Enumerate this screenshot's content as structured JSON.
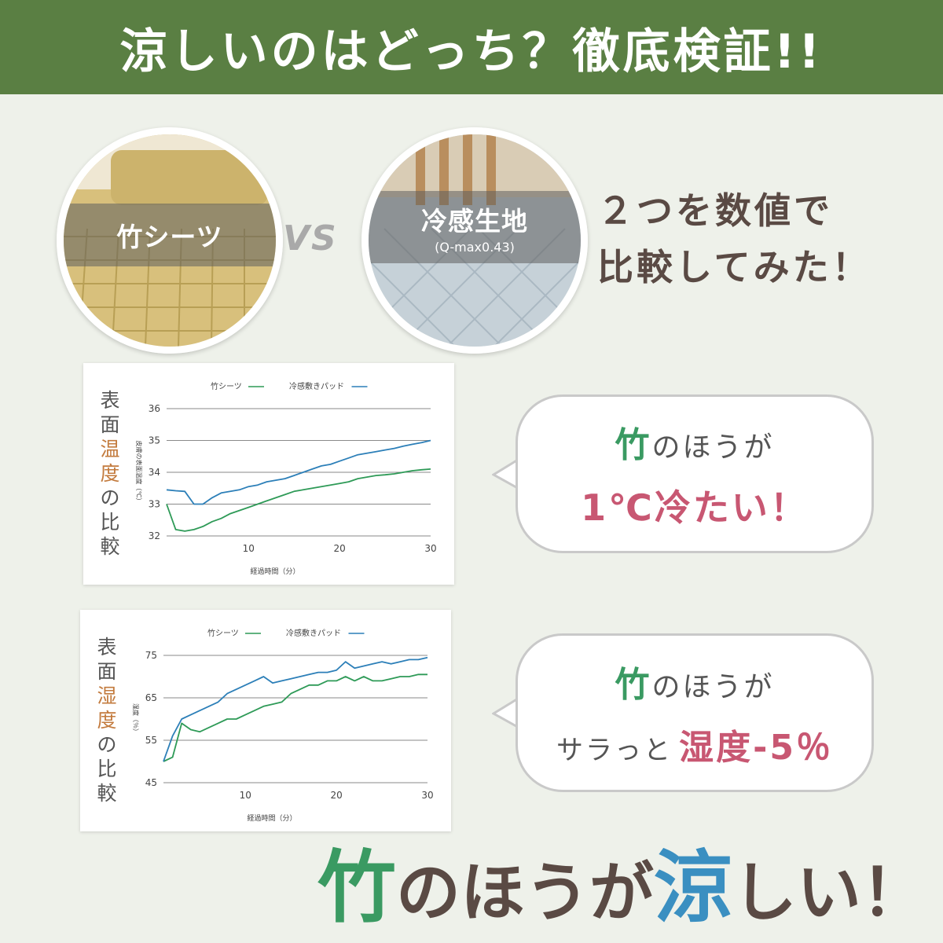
{
  "banner": {
    "title": "涼しいのはどっち？徹底検証!!"
  },
  "comparison": {
    "left": {
      "label": "竹シーツ"
    },
    "vs": "VS",
    "right": {
      "label": "冷感生地",
      "sublabel": "(Q-max0.43)"
    },
    "intro_lines": [
      "２つを数値で",
      "比較してみた！"
    ]
  },
  "colors": {
    "banner": "#5a7f43",
    "background": "#eef1ea",
    "bamboo_line": "#2e9a57",
    "cool_line": "#2c7fb8",
    "accent_green": "#3a9a62",
    "accent_pink": "#c85772",
    "accent_blue": "#3a8fc1"
  },
  "chart_data": [
    {
      "type": "line",
      "title_chars": [
        "表",
        "面",
        "温",
        "度",
        "の",
        "比",
        "較"
      ],
      "highlight_chars": [
        "温",
        "度"
      ],
      "xlabel": "経過時間（分）",
      "ylabel": "皮膚の表面温度（℃）",
      "ylim": [
        32,
        36
      ],
      "xlim": [
        1,
        30
      ],
      "yticks": [
        32,
        33,
        34,
        35,
        36
      ],
      "xticks": [
        10,
        20,
        30
      ],
      "grid": true,
      "legend_position": "top",
      "x": [
        1,
        2,
        3,
        4,
        5,
        6,
        7,
        8,
        9,
        10,
        11,
        12,
        13,
        14,
        15,
        16,
        17,
        18,
        19,
        20,
        21,
        22,
        23,
        24,
        25,
        26,
        27,
        28,
        29,
        30
      ],
      "series": [
        {
          "name": "竹シーツ",
          "color": "#2e9a57",
          "values": [
            33.0,
            32.2,
            32.15,
            32.2,
            32.3,
            32.45,
            32.55,
            32.7,
            32.8,
            32.9,
            33.0,
            33.1,
            33.2,
            33.3,
            33.4,
            33.45,
            33.5,
            33.55,
            33.6,
            33.65,
            33.7,
            33.8,
            33.85,
            33.9,
            33.92,
            33.95,
            34.0,
            34.05,
            34.08,
            34.1
          ]
        },
        {
          "name": "冷感敷きパッド",
          "color": "#2c7fb8",
          "values": [
            33.45,
            33.42,
            33.4,
            33.0,
            33.0,
            33.2,
            33.35,
            33.4,
            33.45,
            33.55,
            33.6,
            33.7,
            33.75,
            33.8,
            33.9,
            34.0,
            34.1,
            34.2,
            34.25,
            34.35,
            34.45,
            34.55,
            34.6,
            34.65,
            34.7,
            34.75,
            34.82,
            34.88,
            34.93,
            35.0
          ]
        }
      ]
    },
    {
      "type": "line",
      "title_chars": [
        "表",
        "面",
        "湿",
        "度",
        "の",
        "比",
        "較"
      ],
      "highlight_chars": [
        "湿",
        "度"
      ],
      "xlabel": "経過時間（分）",
      "ylabel": "湿度（％）",
      "ylim": [
        45,
        75
      ],
      "xlim": [
        1,
        30
      ],
      "yticks": [
        45,
        55,
        65,
        75
      ],
      "xticks": [
        10,
        20,
        30
      ],
      "grid": true,
      "legend_position": "top",
      "x": [
        1,
        2,
        3,
        4,
        5,
        6,
        7,
        8,
        9,
        10,
        11,
        12,
        13,
        14,
        15,
        16,
        17,
        18,
        19,
        20,
        21,
        22,
        23,
        24,
        25,
        26,
        27,
        28,
        29,
        30
      ],
      "series": [
        {
          "name": "竹シーツ",
          "color": "#2e9a57",
          "values": [
            50,
            51,
            59,
            57.5,
            57,
            58,
            59,
            60,
            60,
            61,
            62,
            63,
            63.5,
            64,
            66,
            67,
            68,
            68,
            69,
            69,
            70,
            69,
            70,
            69,
            69,
            69.5,
            70,
            70,
            70.5,
            70.5
          ]
        },
        {
          "name": "冷感敷きパッド",
          "color": "#2c7fb8",
          "values": [
            50,
            56,
            60,
            61,
            62,
            63,
            64,
            66,
            67,
            68,
            69,
            70,
            68.5,
            69,
            69.5,
            70,
            70.5,
            71,
            71,
            71.5,
            73.5,
            72,
            72.5,
            73,
            73.5,
            73,
            73.5,
            74,
            74,
            74.5
          ]
        }
      ]
    }
  ],
  "callouts": [
    {
      "line1": "竹のほうが",
      "line1_accent": "竹",
      "line1_rest": "のほうが",
      "line2": "1℃冷たい！"
    },
    {
      "line1": "竹のほうが",
      "line1_accent": "竹",
      "line1_rest": "のほうが",
      "line2_prefix": "サラっと",
      "line2_accent": "湿度-5％"
    }
  ],
  "conclusion": {
    "part1": "竹",
    "part2": "のほうが",
    "part3": "涼",
    "part4": "しい！"
  }
}
